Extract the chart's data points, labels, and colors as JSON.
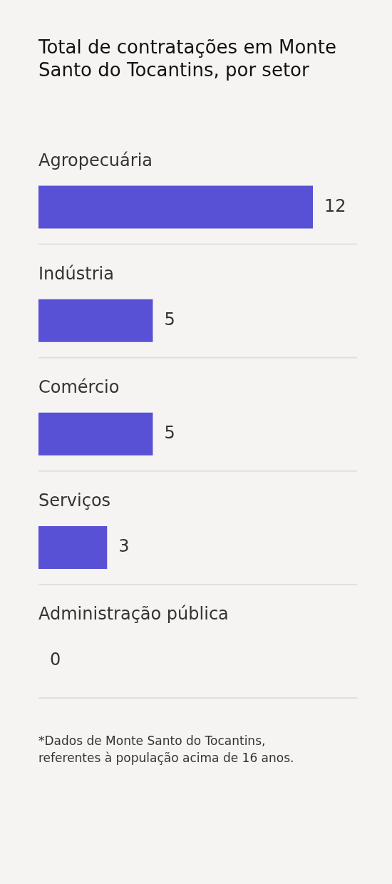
{
  "chart_data": {
    "type": "bar",
    "orientation": "horizontal",
    "title": "Total de contratações em Monte Santo do Tocantins, por setor",
    "categories": [
      "Agropecuária",
      "Indústria",
      "Comércio",
      "Serviços",
      "Administração pública"
    ],
    "values": [
      12,
      5,
      5,
      3,
      0
    ],
    "color": "#5850d5",
    "data_labels": true,
    "grid": "y",
    "tick_labels": "y",
    "annotations": [
      "*Dados de Monte Santo do Tocantins, referentes à população acima de 16 anos."
    ]
  }
}
